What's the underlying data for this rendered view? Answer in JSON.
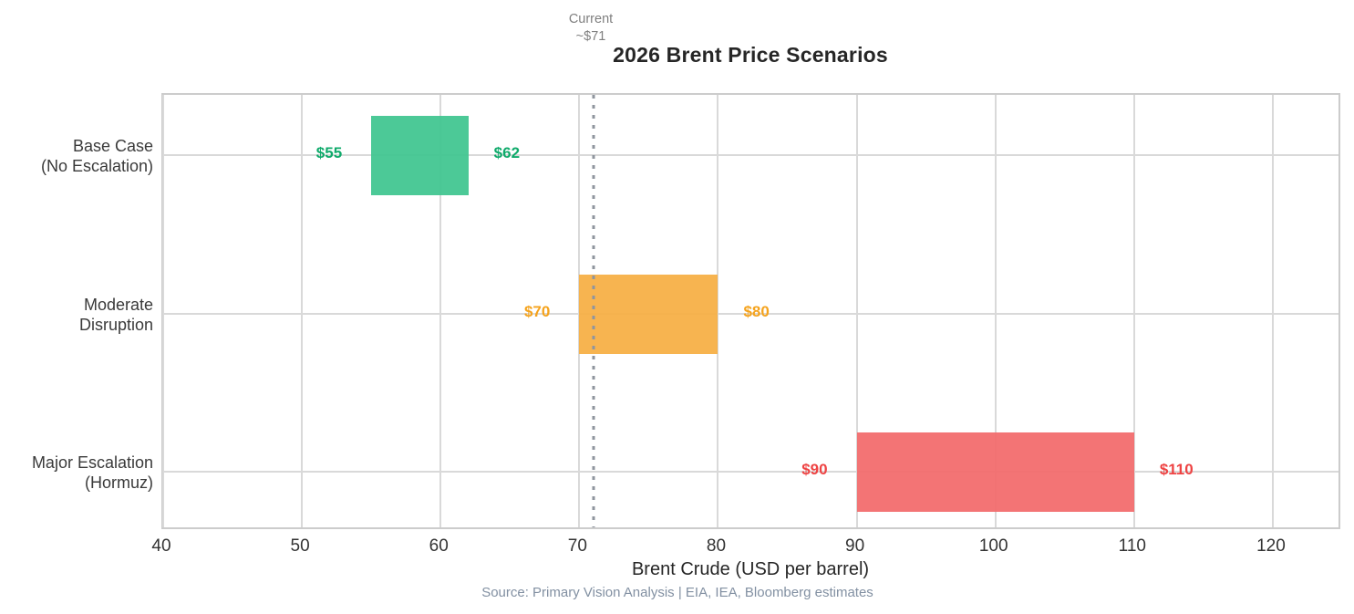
{
  "header": {
    "title": "2026 Brent Price Scenarios"
  },
  "chart_data": {
    "type": "bar",
    "subtype": "horizontal-range-bars",
    "title": "2026 Brent Price Scenarios",
    "xlabel": "Brent Crude (USD per barrel)",
    "ylabel": "",
    "xlim": [
      40,
      125
    ],
    "xticks": [
      "40",
      "50",
      "60",
      "70",
      "80",
      "90",
      "100",
      "110",
      "120"
    ],
    "xtick_values": [
      40,
      50,
      60,
      70,
      80,
      90,
      100,
      110,
      120
    ],
    "grid": true,
    "legend": "none",
    "reference_line": {
      "x": 71,
      "label": "Current",
      "value_label": "~$71",
      "style": "dotted",
      "color": "#8f959e"
    },
    "categories": [
      "Base Case (No Escalation)",
      "Moderate Disruption",
      "Major Escalation (Hormuz)"
    ],
    "series": [
      {
        "name": "Base Case (No Escalation)",
        "label_lines": [
          "Base Case",
          "(No Escalation)"
        ],
        "low": 55,
        "high": 62,
        "low_label": "$55",
        "high_label": "$62",
        "bar_color": "#3ec58f",
        "label_color": "#0faa6b"
      },
      {
        "name": "Moderate Disruption",
        "label_lines": [
          "Moderate",
          "Disruption"
        ],
        "low": 70,
        "high": 80,
        "low_label": "$70",
        "high_label": "$80",
        "bar_color": "#f6ae43",
        "label_color": "#f5a31d"
      },
      {
        "name": "Major Escalation (Hormuz)",
        "label_lines": [
          "Major Escalation",
          "(Hormuz)"
        ],
        "low": 90,
        "high": 110,
        "low_label": "$90",
        "high_label": "$110",
        "bar_color": "#f2696a",
        "label_color": "#ee4343"
      }
    ],
    "colors": {
      "grid": "#d9d9d9",
      "plot_border": "#cccccc",
      "title_text": "#262626",
      "tick_text": "#333333",
      "source_text": "#8290a2",
      "annotation_text": "#7f7f7f"
    }
  },
  "footer": {
    "source": "Source: Primary Vision Analysis | EIA, IEA, Bloomberg estimates"
  }
}
